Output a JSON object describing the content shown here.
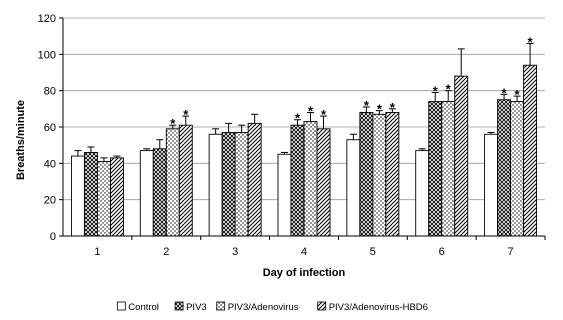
{
  "chart_data": {
    "type": "bar",
    "xlabel": "Day of infection",
    "ylabel": "Breaths/minute",
    "ylim": [
      0,
      120
    ],
    "yticks": [
      0,
      20,
      40,
      60,
      80,
      100,
      120
    ],
    "grid": true,
    "legend_position": "bottom",
    "categories": [
      "1",
      "2",
      "3",
      "4",
      "5",
      "6",
      "7"
    ],
    "series": [
      {
        "name": "Control",
        "pattern": "plain",
        "values": [
          44,
          47,
          56,
          45,
          53,
          47,
          56
        ],
        "errors": [
          3,
          1,
          3,
          1,
          3,
          1,
          1
        ],
        "stars": [
          "",
          "",
          "",
          "",
          "",
          "",
          ""
        ]
      },
      {
        "name": "PIV3",
        "pattern": "crosshatch",
        "values": [
          46,
          48,
          57,
          61,
          68,
          74,
          75
        ],
        "errors": [
          3,
          5,
          5,
          3,
          3,
          5,
          3
        ],
        "stars": [
          "",
          "",
          "",
          "*",
          "*",
          "*",
          "*"
        ]
      },
      {
        "name": "PIV3/Adenovirus",
        "pattern": "dots",
        "values": [
          41,
          59,
          57,
          63,
          67,
          74,
          74
        ],
        "errors": [
          2,
          2,
          4,
          5,
          2,
          6,
          3
        ],
        "stars": [
          "",
          "*",
          "",
          "*",
          "*",
          "*",
          "*"
        ]
      },
      {
        "name": "PIV3/Adenovirus-HBD6",
        "pattern": "diagonal",
        "values": [
          43,
          61,
          62,
          59,
          68,
          88,
          94
        ],
        "errors": [
          1,
          5,
          5,
          7,
          2,
          15,
          12
        ],
        "stars": [
          "",
          "*",
          "",
          "*",
          "*",
          "",
          "*"
        ]
      }
    ],
    "colors": {
      "bar_stroke": "#000000",
      "grid": "#9a9a9a",
      "axis": "#000000",
      "background": "#ffffff"
    }
  }
}
